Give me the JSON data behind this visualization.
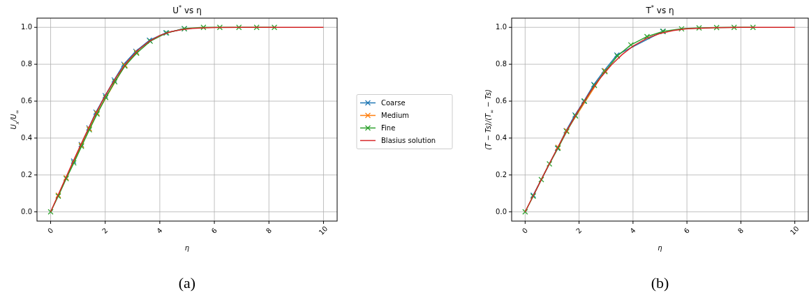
{
  "chart_data": [
    {
      "type": "line",
      "title": "U$^{*}$ vs η",
      "xlabel": "η",
      "ylabel": "U$_{x}$/U$_{∞}$",
      "xlim": [
        -0.5,
        10.5
      ],
      "ylim": [
        -0.05,
        1.05
      ],
      "xticks": [
        0,
        2,
        4,
        6,
        8,
        10
      ],
      "yticks": [
        {
          "value": 0,
          "label": "0.0"
        },
        {
          "value": 0.2,
          "label": "0.2"
        },
        {
          "value": 0.4,
          "label": "0.4"
        },
        {
          "value": 0.6,
          "label": "0.6"
        },
        {
          "value": 0.8,
          "label": "0.8"
        },
        {
          "value": 1,
          "label": "1.0"
        }
      ],
      "grid": true,
      "legend": "right",
      "annotations": [
        "(a)"
      ],
      "series": [
        {
          "name": "Coarse",
          "color": "#1f77b4",
          "marker": "cross",
          "x": [
            0.84,
            1.12,
            1.4,
            1.66,
            2.0,
            2.33,
            2.68,
            3.12,
            3.62,
            4.22,
            4.9
          ],
          "values": [
            0.275,
            0.365,
            0.455,
            0.54,
            0.63,
            0.715,
            0.8,
            0.87,
            0.93,
            0.97,
            0.993
          ]
        },
        {
          "name": "Medium",
          "color": "#ff7f0e",
          "marker": "cross",
          "x": [
            0.28,
            0.57,
            0.85,
            1.13,
            1.42,
            1.7,
            2.02,
            2.35,
            2.72,
            3.15
          ],
          "values": [
            0.09,
            0.185,
            null,
            0.36,
            0.45,
            0.535,
            null,
            null,
            0.795,
            0.865
          ]
        },
        {
          "name": "Fine",
          "color": "#2ca02c",
          "marker": "cross",
          "x": [
            0,
            0.28,
            0.57,
            0.85,
            1.13,
            1.42,
            1.7,
            2.02,
            2.35,
            2.72,
            3.15,
            3.65,
            4.25,
            4.9,
            5.6,
            6.2,
            6.9,
            7.55,
            8.2
          ],
          "values": [
            0,
            0.085,
            0.18,
            0.265,
            0.355,
            0.445,
            0.53,
            0.62,
            0.705,
            0.79,
            0.86,
            0.925,
            0.97,
            0.993,
            1.0,
            1.0,
            1.0,
            1.0,
            1.0
          ]
        },
        {
          "name": "Blasius solution",
          "color": "#d62728",
          "marker": "none",
          "x": [
            0,
            0.4,
            0.8,
            1.2,
            1.6,
            2.0,
            2.4,
            2.8,
            3.2,
            3.6,
            4.0,
            4.4,
            4.8,
            5.2,
            5.6,
            6.0,
            7.0,
            8.0,
            10.0
          ],
          "values": [
            0,
            0.133,
            0.265,
            0.394,
            0.517,
            0.63,
            0.729,
            0.812,
            0.876,
            0.923,
            0.956,
            0.976,
            0.988,
            0.994,
            0.997,
            0.999,
            1.0,
            1.0,
            1.0
          ]
        }
      ]
    },
    {
      "type": "line",
      "title": "T$^{*}$ vs η",
      "xlabel": "η",
      "ylabel": "(T − Ts)/(T$_{∞}$ − Ts)",
      "xlim": [
        -0.5,
        10.5
      ],
      "ylim": [
        -0.05,
        1.05
      ],
      "xticks": [
        0,
        2,
        4,
        6,
        8,
        10
      ],
      "yticks": [
        {
          "value": 0,
          "label": "0.0"
        },
        {
          "value": 0.2,
          "label": "0.2"
        },
        {
          "value": 0.4,
          "label": "0.4"
        },
        {
          "value": 0.6,
          "label": "0.6"
        },
        {
          "value": 0.8,
          "label": "0.8"
        },
        {
          "value": 1,
          "label": "1.0"
        }
      ],
      "grid": true,
      "annotations": [
        "(b)"
      ],
      "series": [
        {
          "color": "#1f77b4",
          "marker": "cross",
          "x": [
            0.3,
            0.6,
            0.9,
            1.2,
            1.52,
            1.85,
            2.18,
            2.55,
            2.93,
            3.4,
            3.92,
            4.5,
            5.1
          ],
          "values": [
            0.09,
            null,
            null,
            0.345,
            0.44,
            0.525,
            0.6,
            0.69,
            0.765,
            0.85,
            null,
            null,
            0.978
          ]
        },
        {
          "color": "#ff7f0e",
          "marker": "cross",
          "x": [
            1.22,
            1.54,
            1.87,
            2.2,
            2.57,
            2.96
          ],
          "values": [
            0.35,
            0.44,
            null,
            null,
            null,
            0.765
          ]
        },
        {
          "color": "#2ca02c",
          "marker": "cross",
          "x": [
            0,
            0.3,
            0.6,
            0.9,
            1.22,
            1.54,
            1.87,
            2.2,
            2.57,
            2.96,
            3.42,
            3.92,
            4.52,
            5.12,
            5.8,
            6.45,
            7.1,
            7.75,
            8.45
          ],
          "values": [
            0,
            0.085,
            0.175,
            0.26,
            0.345,
            0.435,
            0.52,
            0.6,
            0.685,
            0.76,
            0.845,
            0.905,
            0.95,
            0.978,
            0.992,
            0.997,
            0.999,
            1.0,
            1.0
          ]
        },
        {
          "color": "#d62728",
          "marker": "none",
          "x": [
            0,
            0.4,
            0.8,
            1.2,
            1.6,
            2.0,
            2.4,
            2.8,
            3.2,
            3.6,
            4.0,
            4.5,
            5.0,
            5.5,
            6.0,
            7.0,
            8.0,
            10.0
          ],
          "values": [
            0,
            0.117,
            0.233,
            0.346,
            0.454,
            0.555,
            0.647,
            0.728,
            0.797,
            0.853,
            0.898,
            0.94,
            0.967,
            0.983,
            0.992,
            0.998,
            1.0,
            1.0
          ]
        }
      ]
    }
  ]
}
